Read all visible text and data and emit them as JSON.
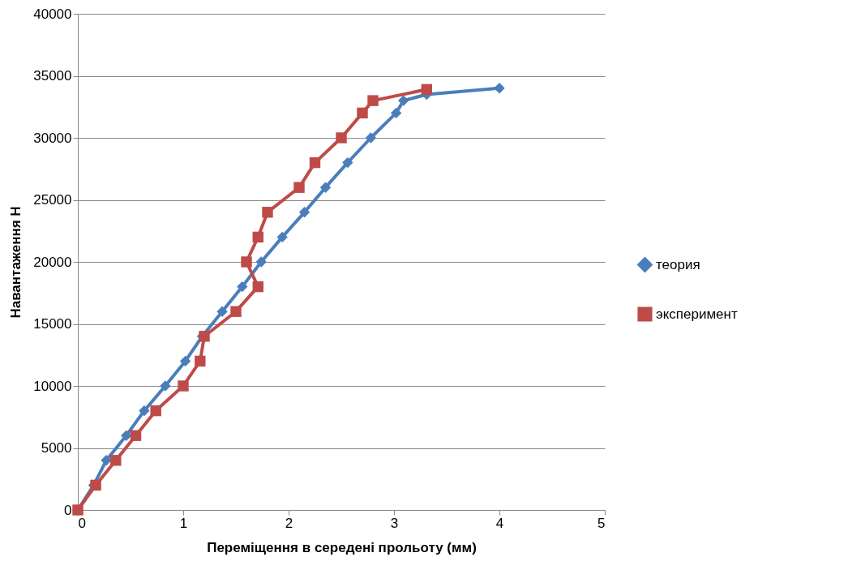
{
  "chart_data": {
    "type": "line",
    "xlabel": "Переміщення в середені прольоту (мм)",
    "ylabel": "Навантаження Н",
    "xlim": [
      0,
      5
    ],
    "xticks": [
      0,
      1,
      2,
      3,
      4,
      5
    ],
    "ylim": [
      0,
      40000
    ],
    "yticks": [
      0,
      5000,
      10000,
      15000,
      20000,
      25000,
      30000,
      35000,
      40000
    ],
    "grid": "y",
    "legend": "right",
    "series": [
      {
        "name": "теория",
        "color": "#4a7ebb",
        "marker": "diamond",
        "x": [
          0,
          0.15,
          0.27,
          0.46,
          0.63,
          0.83,
          1.02,
          1.18,
          1.37,
          1.56,
          1.74,
          1.94,
          2.15,
          2.35,
          2.56,
          2.78,
          3.02,
          3.09,
          3.31,
          4.0
        ],
        "values": [
          0,
          2000,
          4000,
          6000,
          8000,
          10000,
          12000,
          14000,
          16000,
          18000,
          20000,
          22000,
          24000,
          26000,
          28000,
          30000,
          32000,
          33000,
          33500,
          34000
        ]
      },
      {
        "name": "эксперимент",
        "color": "#be4b48",
        "marker": "square",
        "x": [
          0,
          0.17,
          0.36,
          0.55,
          0.74,
          1.0,
          1.16,
          1.2,
          1.5,
          1.71,
          1.6,
          1.71,
          1.8,
          2.1,
          2.25,
          2.5,
          2.7,
          2.8,
          3.31
        ],
        "values": [
          0,
          2000,
          4000,
          6000,
          8000,
          10000,
          12000,
          14000,
          16000,
          18000,
          20000,
          22000,
          24000,
          26000,
          28000,
          30000,
          32000,
          33000,
          33900
        ]
      }
    ]
  }
}
